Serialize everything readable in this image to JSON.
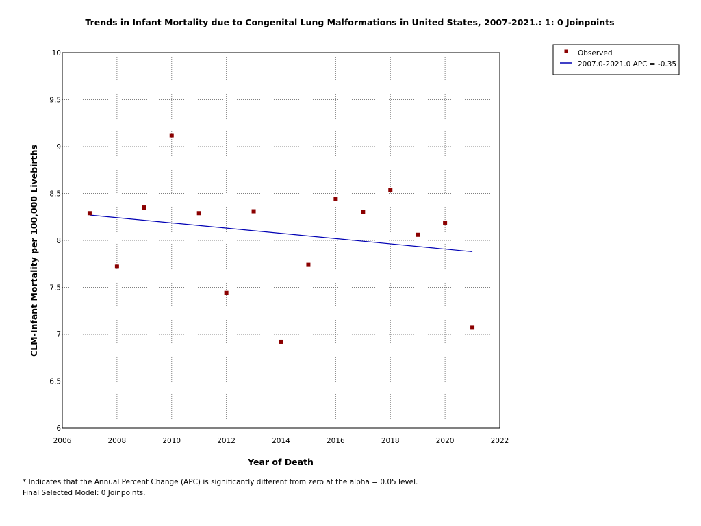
{
  "colors": {
    "observed": "#8b0000",
    "fit_line": "#0000b4",
    "grid": "#808080",
    "axis": "#000000"
  },
  "chart_data": {
    "type": "scatter",
    "title": "Trends in Infant Mortality due to Congenital Lung Malformations in United States, 2007-2021.: 1: 0 Joinpoints",
    "xlabel": "Year of Death",
    "ylabel": "CLM-Infant Mortality per 100,000 Livebirths",
    "xlim": [
      2006,
      2022
    ],
    "ylim": [
      6,
      10
    ],
    "xticks": [
      "2006",
      "2008",
      "2010",
      "2012",
      "2014",
      "2016",
      "2018",
      "2020",
      "2022"
    ],
    "yticks": [
      "6",
      "6.5",
      "7",
      "7.5",
      "8",
      "8.5",
      "9",
      "9.5",
      "10"
    ],
    "grid": true,
    "legend_position": "outside-top-right",
    "series": [
      {
        "name": "Observed",
        "kind": "points",
        "marker": "square",
        "x": [
          2007,
          2008,
          2009,
          2010,
          2011,
          2012,
          2013,
          2014,
          2015,
          2016,
          2017,
          2018,
          2019,
          2020,
          2021
        ],
        "y": [
          8.29,
          7.72,
          8.35,
          9.12,
          8.29,
          7.44,
          8.31,
          6.92,
          7.74,
          8.44,
          8.3,
          8.54,
          8.06,
          8.19,
          7.07
        ]
      },
      {
        "name": "2007.0-2021.0 APC  = -0.35",
        "kind": "line",
        "x": [
          2007,
          2021
        ],
        "y": [
          8.27,
          7.88
        ]
      }
    ]
  },
  "footnotes": {
    "line1": "* Indicates that the Annual Percent Change (APC) is significantly different from zero at the alpha = 0.05 level.",
    "line2": "Final Selected Model: 0 Joinpoints."
  }
}
